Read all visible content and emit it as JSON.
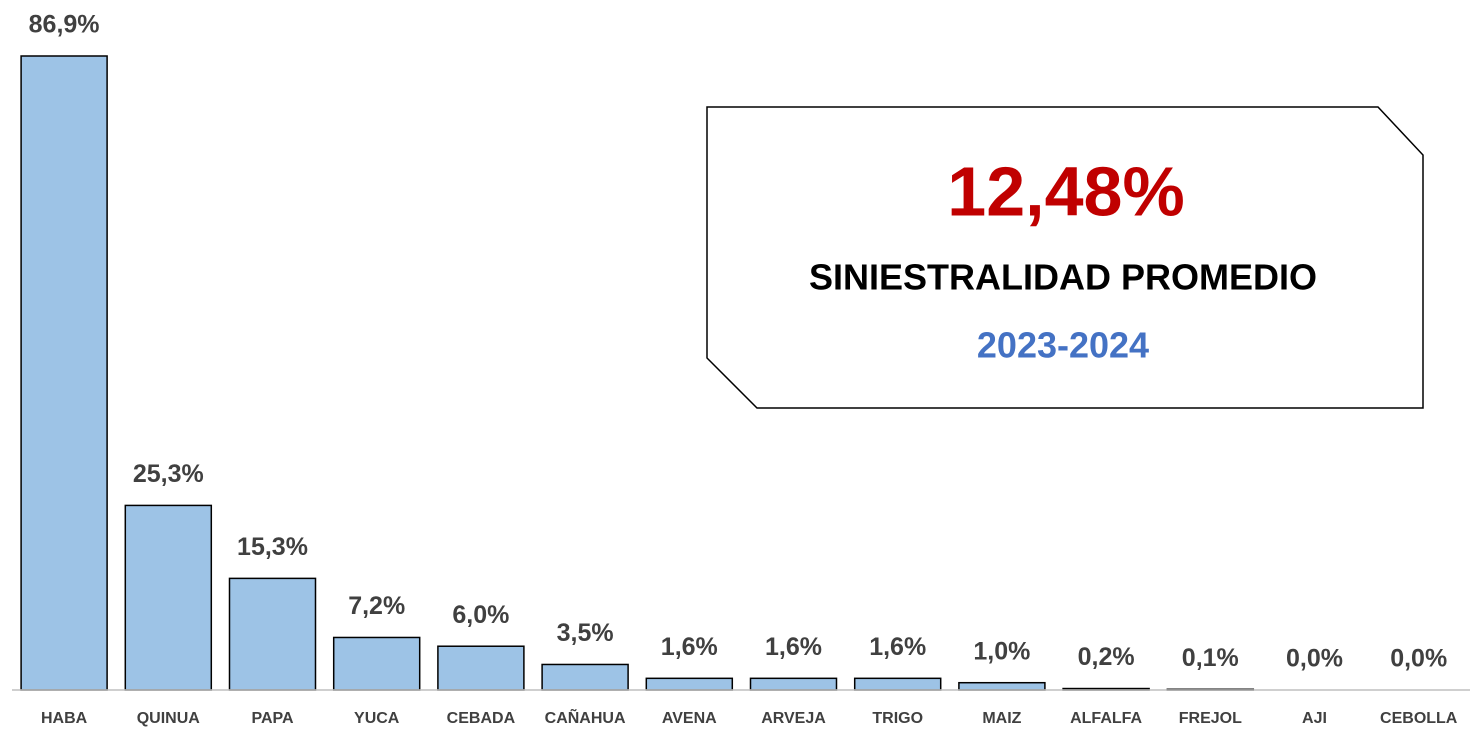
{
  "chart_data": {
    "type": "bar",
    "categories": [
      "HABA",
      "QUINUA",
      "PAPA",
      "YUCA",
      "CEBADA",
      "CAÑAHUA",
      "AVENA",
      "ARVEJA",
      "TRIGO",
      "MAIZ",
      "ALFALFA",
      "FREJOL",
      "AJI",
      "CEBOLLA"
    ],
    "values": [
      86.9,
      25.3,
      15.3,
      7.2,
      6.0,
      3.5,
      1.6,
      1.6,
      1.6,
      1.0,
      0.2,
      0.1,
      0.0,
      0.0
    ],
    "value_labels": [
      "86,9%",
      "25,3%",
      "15,3%",
      "7,2%",
      "6,0%",
      "3,5%",
      "1,6%",
      "1,6%",
      "1,6%",
      "1,0%",
      "0,2%",
      "0,1%",
      "0,0%",
      "0,0%"
    ],
    "color": "#9dc3e6",
    "annotation": {
      "value": "12,48%",
      "title": "SINIESTRALIDAD PROMEDIO",
      "period": "2023-2024"
    }
  }
}
